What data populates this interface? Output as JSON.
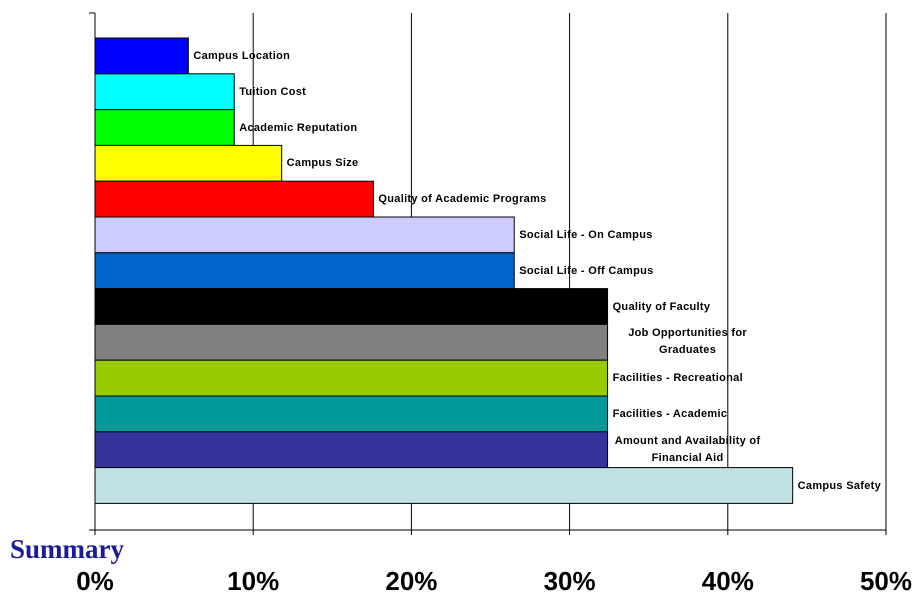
{
  "chart_data": {
    "type": "barh",
    "annotation": "Summary",
    "categories": [
      "Campus Location",
      "Tuition Cost",
      "Academic Reputation",
      "Campus Size",
      "Quality of Academic Programs",
      "Social Life - On Campus",
      "Social Life - Off Campus",
      "Quality of Faculty",
      "Job Opportunities for Graduates",
      "Facilities - Recreational",
      "Facilities - Academic",
      "Amount and Availability of Financial Aid",
      "Campus Safety"
    ],
    "values": [
      5.9,
      8.8,
      8.8,
      11.8,
      17.6,
      26.5,
      26.5,
      32.4,
      32.4,
      32.4,
      32.4,
      32.4,
      44.1
    ],
    "colors": [
      "#0000ff",
      "#00ffff",
      "#00ff00",
      "#ffff00",
      "#ff0000",
      "#ccccff",
      "#0066cc",
      "#000000",
      "#808080",
      "#99cc00",
      "#009999",
      "#333399",
      "#c0e0e4"
    ],
    "xlim": [
      0,
      50
    ],
    "xticks": [
      {
        "value": 0,
        "label": "0%"
      },
      {
        "value": 10,
        "label": "10%"
      },
      {
        "value": 20,
        "label": "20%"
      },
      {
        "value": 30,
        "label": "30%"
      },
      {
        "value": 40,
        "label": "40%"
      },
      {
        "value": 50,
        "label": "50%"
      }
    ],
    "grid": true
  }
}
